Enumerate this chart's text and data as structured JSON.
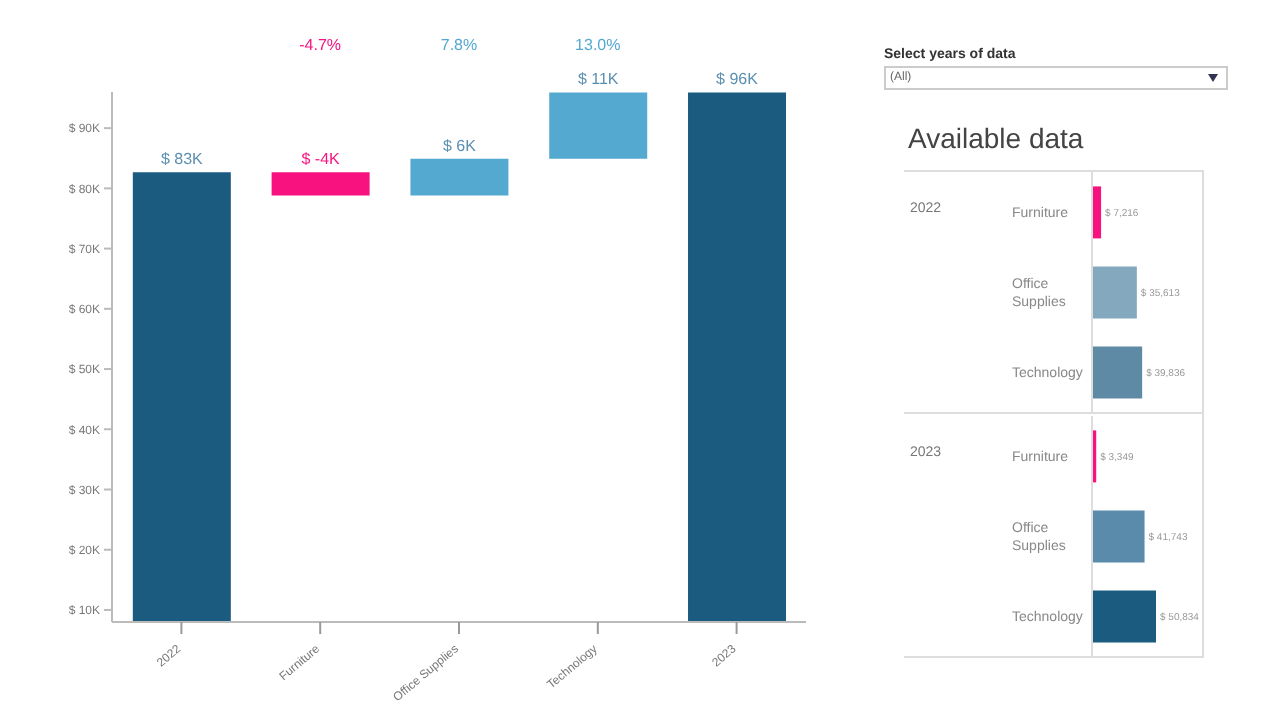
{
  "chart_data": [
    {
      "type": "bar",
      "categories": [
        "2022",
        "Furniture",
        "Office Supplies",
        "Technology",
        "2023"
      ],
      "values": [
        82665,
        -3867,
        6130,
        10998,
        95926
      ],
      "base": [
        null,
        82665,
        78798,
        84928,
        null
      ],
      "colors": [
        "#1b5b80",
        "#f7127f",
        "#53a9cf",
        "#53a9cf",
        "#1b5b80"
      ],
      "value_labels": [
        "$ 83K",
        "$ -4K",
        "$ 6K",
        "$ 11K",
        "$ 96K"
      ],
      "annotations": [
        "-4.7%",
        "7.8%",
        "13.0%"
      ],
      "ylim": [
        8000,
        96000
      ],
      "yticks": [
        {
          "value": 10000,
          "label": "$ 10K"
        },
        {
          "value": 20000,
          "label": "$ 20K"
        },
        {
          "value": 30000,
          "label": "$ 30K"
        },
        {
          "value": 40000,
          "label": "$ 40K"
        },
        {
          "value": 50000,
          "label": "$ 50K"
        },
        {
          "value": 60000,
          "label": "$ 60K"
        },
        {
          "value": 70000,
          "label": "$ 70K"
        },
        {
          "value": 80000,
          "label": "$ 80K"
        },
        {
          "value": 90000,
          "label": "$ 90K"
        }
      ],
      "grid": false
    },
    {
      "type": "other",
      "title": "Select years of data",
      "annotations": [
        "(All)"
      ]
    },
    {
      "type": "bar",
      "orientation": "horizontal",
      "title": "Available data",
      "ylabel": "2022",
      "categories": [
        "Furniture",
        "Office Supplies",
        "Technology"
      ],
      "values": [
        7216,
        35613,
        39836
      ],
      "colors": [
        "#f7127f",
        "#84a8be",
        "#5f8aa6"
      ],
      "value_labels": [
        "$ 7,216",
        "$ 35,613",
        "$ 39,836"
      ],
      "tick_labels": "y"
    },
    {
      "type": "bar",
      "orientation": "horizontal",
      "ylabel": "2023",
      "categories": [
        "Furniture",
        "Office Supplies",
        "Technology"
      ],
      "values": [
        3349,
        41743,
        50834
      ],
      "colors": [
        "#f7127f",
        "#5a8bab",
        "#1b5b80"
      ],
      "value_labels": [
        "$ 3,349",
        "$ 41,743",
        "$ 50,834"
      ],
      "tick_labels": "y"
    }
  ]
}
